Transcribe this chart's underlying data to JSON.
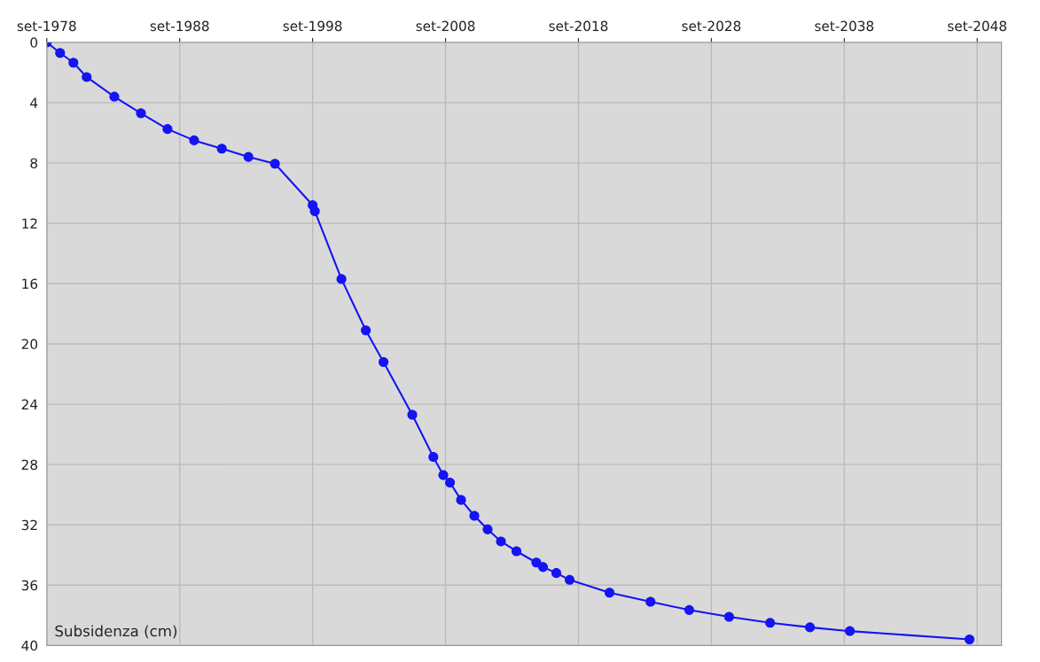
{
  "chart_data": {
    "type": "line",
    "ylabel": "Subsidenza (cm)",
    "x": [
      "1978-09",
      "1979-09",
      "1980-09",
      "1981-09",
      "1983-10",
      "1985-10",
      "1987-10",
      "1989-10",
      "1991-11",
      "1993-11",
      "1995-11",
      "1998-09",
      "1998-11",
      "2000-11",
      "2002-09",
      "2004-01",
      "2006-03",
      "2007-10",
      "2008-07",
      "2009-01",
      "2009-11",
      "2010-11",
      "2011-11",
      "2012-11",
      "2014-01",
      "2015-07",
      "2016-01",
      "2017-01",
      "2018-01",
      "2021-01",
      "2024-02",
      "2027-01",
      "2030-01",
      "2033-02",
      "2036-02",
      "2039-02",
      "2048-02"
    ],
    "series": [
      {
        "color": "#1414f5",
        "values": [
          0,
          0.7,
          1.35,
          2.3,
          3.6,
          4.7,
          5.75,
          6.5,
          7.05,
          7.6,
          8.05,
          10.8,
          11.2,
          15.7,
          19.1,
          21.2,
          24.7,
          27.5,
          28.7,
          29.2,
          30.35,
          31.4,
          32.3,
          33.1,
          33.75,
          34.5,
          34.8,
          35.2,
          35.65,
          36.5,
          37.1,
          37.65,
          38.1,
          38.5,
          38.8,
          39.05,
          39.6
        ]
      }
    ],
    "xlim": [
      "1978-09",
      "2050-07"
    ],
    "xticks": [
      {
        "value": "1978-09",
        "label": "set-1978"
      },
      {
        "value": "1988-09",
        "label": "set-1988"
      },
      {
        "value": "1998-09",
        "label": "set-1998"
      },
      {
        "value": "2008-09",
        "label": "set-2008"
      },
      {
        "value": "2018-09",
        "label": "set-2018"
      },
      {
        "value": "2028-09",
        "label": "set-2028"
      },
      {
        "value": "2038-09",
        "label": "set-2038"
      },
      {
        "value": "2048-09",
        "label": "set-2048"
      }
    ],
    "ylim": [
      40,
      0
    ],
    "yticks": [
      0,
      4,
      8,
      12,
      16,
      20,
      24,
      28,
      32,
      36,
      40
    ],
    "grid": true,
    "marker": "circle",
    "line_style": "solid"
  }
}
